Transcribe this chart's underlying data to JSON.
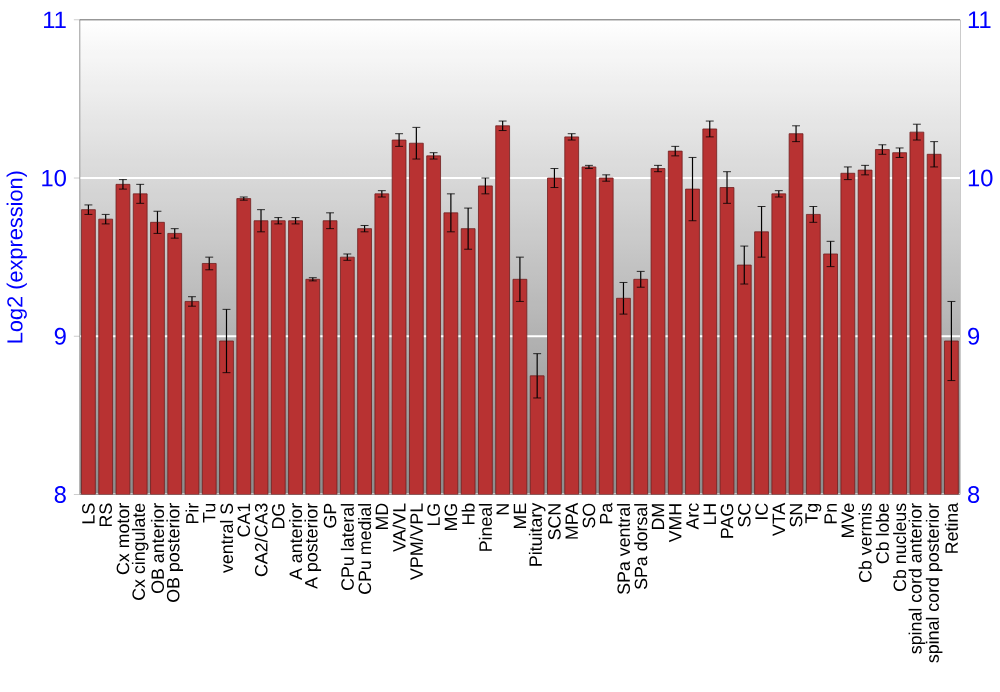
{
  "chart_data": {
    "type": "bar",
    "ylabel": "Log2 (expression)",
    "categories": [
      "LS",
      "RS",
      "Cx motor",
      "Cx cingulate",
      "OB anterior",
      "OB posterior",
      "Pir",
      "Tu",
      "ventral S",
      "CA1",
      "CA2/CA3",
      "DG",
      "A anterior",
      "A posterior",
      "GP",
      "CPu lateral",
      "CPu medial",
      "MD",
      "VA/VL",
      "VPM/VPL",
      "LG",
      "MG",
      "Hb",
      "Pineal",
      "N",
      "ME",
      "Pituitary",
      "SCN",
      "MPA",
      "SO",
      "Pa",
      "SPa ventral",
      "SPa dorsal",
      "DM",
      "VMH",
      "Arc",
      "LH",
      "PAG",
      "SC",
      "IC",
      "VTA",
      "SN",
      "Tg",
      "Pn",
      "MVe",
      "Cb vermis",
      "Cb lobe",
      "Cb nucleus",
      "spinal cord anterior",
      "spinal cord posterior",
      "Retina"
    ],
    "values": [
      9.8,
      9.74,
      9.96,
      9.9,
      9.72,
      9.65,
      9.22,
      9.46,
      8.97,
      9.87,
      9.73,
      9.73,
      9.73,
      9.36,
      9.73,
      9.5,
      9.68,
      9.9,
      10.24,
      10.22,
      10.14,
      9.78,
      9.68,
      9.95,
      10.33,
      9.36,
      8.75,
      10.0,
      10.26,
      10.07,
      10.0,
      9.24,
      9.36,
      10.06,
      10.17,
      9.93,
      10.31,
      9.94,
      9.45,
      9.66,
      9.9,
      10.28,
      9.77,
      9.52,
      10.03,
      10.05,
      10.18,
      10.16,
      10.29,
      10.15,
      8.97
    ],
    "errors": [
      0.03,
      0.03,
      0.03,
      0.06,
      0.07,
      0.03,
      0.03,
      0.04,
      0.2,
      0.01,
      0.07,
      0.02,
      0.02,
      0.01,
      0.05,
      0.02,
      0.02,
      0.02,
      0.04,
      0.1,
      0.02,
      0.12,
      0.13,
      0.05,
      0.03,
      0.14,
      0.14,
      0.06,
      0.02,
      0.01,
      0.02,
      0.1,
      0.05,
      0.02,
      0.03,
      0.2,
      0.05,
      0.1,
      0.12,
      0.16,
      0.02,
      0.05,
      0.05,
      0.08,
      0.04,
      0.03,
      0.03,
      0.03,
      0.05,
      0.08,
      0.25
    ],
    "color": "#b83232",
    "ylim": [
      8,
      11
    ],
    "yticks": [
      8,
      9,
      10,
      11
    ],
    "y2lim": [
      8,
      11
    ],
    "y2ticks": [
      8,
      9,
      10,
      11
    ],
    "grid": "y"
  }
}
